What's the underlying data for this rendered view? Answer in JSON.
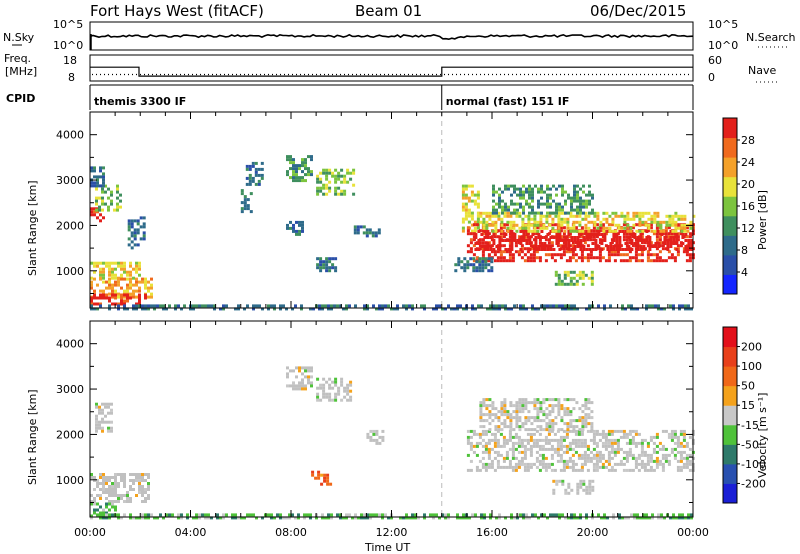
{
  "header": {
    "radar": "Fort Hays West (fitACF)",
    "beam": "Beam 01",
    "date": "06/Dec/2015"
  },
  "left_labels": {
    "nsky": "N.Sky",
    "freq_line1": "Freq.",
    "freq_line2": "[MHz]",
    "cpid": "CPID"
  },
  "right_labels": {
    "nsearch": "N.Search",
    "nave": "Nave"
  },
  "chart_data": [
    {
      "type": "line",
      "panel": "noise",
      "ytick_labels": [
        "10^5",
        "10^0"
      ],
      "right_ytick_labels": [
        "10^5",
        "10^0"
      ],
      "series": [
        {
          "name": "N.Sky"
        },
        {
          "name": "N.Search"
        }
      ]
    },
    {
      "type": "line",
      "panel": "frequency",
      "ytick_labels": [
        "18",
        "8"
      ],
      "right_ytick_labels": [
        "60",
        "0"
      ],
      "ylim": [
        8,
        18
      ],
      "right_ylim": [
        0,
        60
      ],
      "freq_steps": [
        {
          "x0": 0.0,
          "x1": 1.95,
          "freq": 13.3
        },
        {
          "x0": 1.95,
          "x1": 14.0,
          "freq": 9.9
        },
        {
          "x0": 14.0,
          "x1": 24.0,
          "freq": 13.3
        }
      ],
      "nave_approx": 15,
      "series": [
        {
          "name": "Freq."
        },
        {
          "name": "Nave"
        }
      ]
    },
    {
      "type": "table",
      "panel": "cpid",
      "segments": [
        {
          "start": 0.0,
          "end": 14.0,
          "label": "themis 3300 IF"
        },
        {
          "start": 14.0,
          "end": 24.0,
          "label": "normal (fast) 151 IF"
        }
      ]
    },
    {
      "type": "heatmap",
      "panel": "power",
      "ylabel": "Slant Range [km]",
      "ylim": [
        180,
        4500
      ],
      "yticks": [
        1000,
        2000,
        3000,
        4000
      ],
      "xlim": [
        0,
        24
      ],
      "colorbar": {
        "label": "Power [dB]",
        "ticks": [
          "4",
          "8",
          "12",
          "16",
          "20",
          "24",
          "28"
        ],
        "colors": [
          "#1426ff",
          "#2a4fa8",
          "#2e6b8a",
          "#3f8f5e",
          "#7cc43e",
          "#e8e23a",
          "#f4a12a",
          "#f06a1e",
          "#e3201b"
        ]
      },
      "echo_regions": [
        {
          "t0": 0.0,
          "t1": 0.5,
          "r0": 2100,
          "r1": 2400,
          "level": 8
        },
        {
          "t0": 0.2,
          "t1": 1.2,
          "r0": 2350,
          "r1": 2900,
          "level": 4
        },
        {
          "t0": 0.0,
          "t1": 0.5,
          "r0": 2900,
          "r1": 3300,
          "level": 2
        },
        {
          "t0": 0.0,
          "t1": 2.0,
          "r0": 850,
          "r1": 1200,
          "level": 5
        },
        {
          "t0": 0.0,
          "t1": 2.5,
          "r0": 450,
          "r1": 850,
          "level": 6
        },
        {
          "t0": 0.0,
          "t1": 2.2,
          "r0": 300,
          "r1": 500,
          "level": 8
        },
        {
          "t0": 1.5,
          "t1": 2.2,
          "r0": 1500,
          "r1": 2200,
          "level": 2
        },
        {
          "t0": 6.2,
          "t1": 6.8,
          "r0": 2900,
          "r1": 3400,
          "level": 2
        },
        {
          "t0": 7.8,
          "t1": 8.8,
          "r0": 3000,
          "r1": 3550,
          "level": 3
        },
        {
          "t0": 9.0,
          "t1": 10.5,
          "r0": 2700,
          "r1": 3250,
          "level": 4
        },
        {
          "t0": 6.0,
          "t1": 6.4,
          "r0": 2300,
          "r1": 2800,
          "level": 2
        },
        {
          "t0": 7.8,
          "t1": 8.4,
          "r0": 1800,
          "r1": 2100,
          "level": 2
        },
        {
          "t0": 9.0,
          "t1": 9.8,
          "r0": 1000,
          "r1": 1300,
          "level": 2
        },
        {
          "t0": 10.5,
          "t1": 11.5,
          "r0": 1700,
          "r1": 2000,
          "level": 2
        },
        {
          "t0": 14.8,
          "t1": 15.4,
          "r0": 1900,
          "r1": 2900,
          "level": 5
        },
        {
          "t0": 15.0,
          "t1": 24.0,
          "r0": 1250,
          "r1": 2050,
          "level": 8
        },
        {
          "t0": 15.3,
          "t1": 24.0,
          "r0": 1500,
          "r1": 1900,
          "level": 9
        },
        {
          "t0": 15.5,
          "t1": 24.0,
          "r0": 1900,
          "r1": 2300,
          "level": 5
        },
        {
          "t0": 16.0,
          "t1": 20.0,
          "r0": 2300,
          "r1": 2900,
          "level": 3
        },
        {
          "t0": 14.5,
          "t1": 16.0,
          "r0": 1000,
          "r1": 1300,
          "level": 2
        },
        {
          "t0": 18.5,
          "t1": 20.0,
          "r0": 700,
          "r1": 1000,
          "level": 4
        },
        {
          "t0": 0.0,
          "t1": 24.0,
          "r0": 180,
          "r1": 260,
          "level": 2
        }
      ]
    },
    {
      "type": "heatmap",
      "panel": "velocity",
      "ylabel": "Slant Range [km]",
      "xlabel": "Time UT",
      "ylim": [
        180,
        4500
      ],
      "yticks": [
        1000,
        2000,
        3000,
        4000
      ],
      "xlim": [
        0,
        24
      ],
      "xtick_labels": [
        "00:00",
        "04:00",
        "08:00",
        "12:00",
        "16:00",
        "20:00",
        "00:00"
      ],
      "colorbar": {
        "label": "Velocity [m s⁻¹]",
        "ticks": [
          "200",
          "100",
          "50",
          "15",
          "-15",
          "-50",
          "-100",
          "-200"
        ],
        "colors": [
          "#1a1fd6",
          "#2850b0",
          "#2e7a6a",
          "#4fc23a",
          "#c8c8c8",
          "#f4a21c",
          "#f06818",
          "#e8401a",
          "#e3101a"
        ]
      },
      "ground_scatter_color": "#c0c0c0",
      "echo_regions": [
        {
          "t0": 0.2,
          "t1": 0.8,
          "r0": 2100,
          "r1": 2700,
          "level": 4
        },
        {
          "t0": 0.0,
          "t1": 2.3,
          "r0": 550,
          "r1": 1150,
          "level": 4
        },
        {
          "t0": 0.0,
          "t1": 1.0,
          "r0": 200,
          "r1": 500,
          "level": 3
        },
        {
          "t0": 7.8,
          "t1": 8.8,
          "r0": 3000,
          "r1": 3500,
          "level": 4
        },
        {
          "t0": 9.0,
          "t1": 10.4,
          "r0": 2750,
          "r1": 3250,
          "level": 4
        },
        {
          "t0": 8.8,
          "t1": 9.6,
          "r0": 900,
          "r1": 1200,
          "level": 6
        },
        {
          "t0": 11.0,
          "t1": 11.6,
          "r0": 1800,
          "r1": 2100,
          "level": 4
        },
        {
          "t0": 15.0,
          "t1": 24.0,
          "r0": 1200,
          "r1": 2100,
          "level": 4
        },
        {
          "t0": 15.5,
          "t1": 20.0,
          "r0": 2100,
          "r1": 2800,
          "level": 4
        },
        {
          "t0": 18.4,
          "t1": 20.0,
          "r0": 700,
          "r1": 1000,
          "level": 4
        },
        {
          "t0": 0.0,
          "t1": 24.0,
          "r0": 180,
          "r1": 260,
          "level": 3
        }
      ]
    }
  ]
}
